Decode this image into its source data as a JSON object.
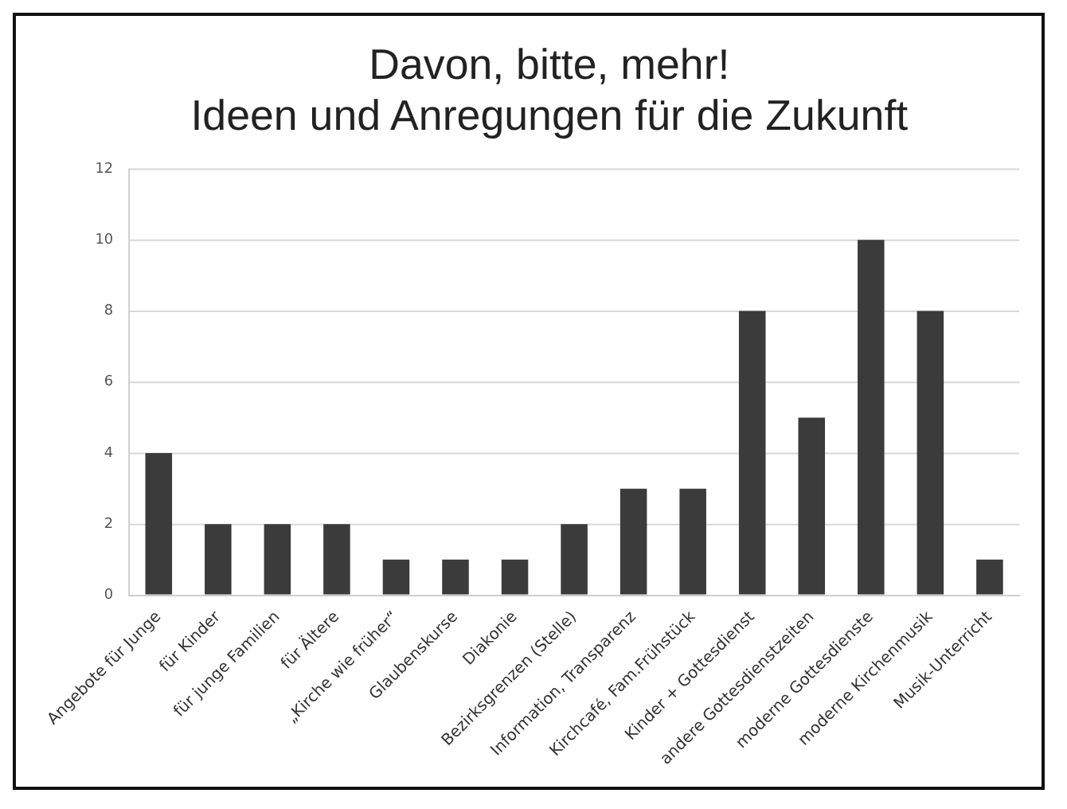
{
  "chart_data": {
    "type": "bar",
    "title": [
      "Davon, bitte, mehr!",
      "Ideen und Anregungen für die Zukunft"
    ],
    "categories": [
      "Angebote für Junge",
      "für Kinder",
      "für junge Familien",
      "für Ältere",
      "„Kirche wie früher“",
      "Glaubenskurse",
      "Diakonie",
      "Bezirksgrenzen (Stelle)",
      "Information, Transparenz",
      "Kirchcafé, Fam.Frühstück",
      "Kinder + Gottesdienst",
      "andere Gottesdienstzeiten",
      "moderne Gottesdienste",
      "moderne Kirchenmusik",
      "Musik-Unterricht"
    ],
    "values": [
      4,
      2,
      2,
      2,
      1,
      1,
      1,
      2,
      3,
      3,
      8,
      5,
      10,
      8,
      1
    ],
    "color": "#3b3b3b",
    "ylim": [
      0,
      12
    ],
    "yticks": [
      0,
      2,
      4,
      6,
      8,
      10,
      12
    ],
    "grid": "y",
    "legend": false
  }
}
